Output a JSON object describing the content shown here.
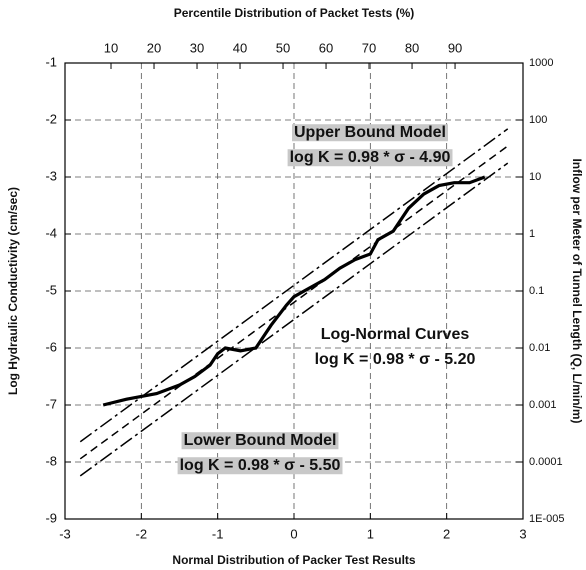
{
  "chart_data": {
    "type": "line",
    "xlabel": "Normal Distribution of Packer Test Results",
    "ylabel": "Log Hydraulic Conductivity (cm/sec)",
    "x2label": "Percentile Distribution of Packet Tests (%)",
    "y2label": "Inflow per Meter of Tunnel Length (Q, L/min/m)",
    "xlim": [
      -3,
      3
    ],
    "xticks": [
      -3,
      -2,
      -1,
      0,
      1,
      2,
      3
    ],
    "ylim": [
      -9,
      -1
    ],
    "yticks": [
      -9,
      -8,
      -7,
      -6,
      -5,
      -4,
      -3,
      -2,
      -1
    ],
    "x2lim": [
      -0.7,
      105.8
    ],
    "x2ticks": [
      10,
      20,
      30,
      40,
      50,
      60,
      70,
      80,
      90
    ],
    "y2lim": [
      1e-05,
      1000
    ],
    "y2scale": "log",
    "y2ticks": [
      {
        "value": 1e-05,
        "label": "1E-005"
      },
      0.0001,
      0.001,
      0.01,
      0.1,
      1,
      10,
      100,
      1000
    ],
    "grid": true,
    "series": [
      {
        "color": "#000",
        "style": "solid",
        "x": [
          -2.5,
          -2.2,
          -2.0,
          -1.8,
          -1.5,
          -1.3,
          -1.1,
          -1.0,
          -0.9,
          -0.7,
          -0.5,
          -0.3,
          -0.1,
          0,
          0.2,
          0.4,
          0.6,
          0.8,
          1.0,
          1.1,
          1.3,
          1.5,
          1.7,
          1.9,
          2.1,
          2.3,
          2.5
        ],
        "values": [
          -7.0,
          -6.9,
          -6.85,
          -6.8,
          -6.65,
          -6.5,
          -6.3,
          -6.1,
          -6.0,
          -6.05,
          -6.0,
          -5.6,
          -5.25,
          -5.1,
          -4.95,
          -4.8,
          -4.6,
          -4.45,
          -4.35,
          -4.1,
          -3.95,
          -3.55,
          -3.3,
          -3.15,
          -3.1,
          -3.1,
          -3.0
        ]
      },
      {
        "color": "#000",
        "style": "dashdot",
        "x": [
          -2.8,
          2.8
        ],
        "values": [
          -7.644,
          -2.156
        ]
      },
      {
        "color": "#000",
        "style": "dashed",
        "x": [
          -2.8,
          2.8
        ],
        "values": [
          -7.944,
          -2.456
        ]
      },
      {
        "color": "#000",
        "style": "dashdot",
        "x": [
          -2.8,
          2.8
        ],
        "values": [
          -8.244,
          -2.756
        ]
      }
    ],
    "annotations": [
      {
        "text": "Upper Bound Model",
        "highlight": true
      },
      {
        "text": "log K = 0.98 * σ - 4.90",
        "highlight": true
      },
      {
        "text": "Log-Normal Curves",
        "highlight": false
      },
      {
        "text": "log K = 0.98 * σ - 5.20",
        "highlight": false
      },
      {
        "text": "Lower Bound Model",
        "highlight": true
      },
      {
        "text": "log K = 0.98 * σ - 5.50",
        "highlight": true
      }
    ]
  }
}
